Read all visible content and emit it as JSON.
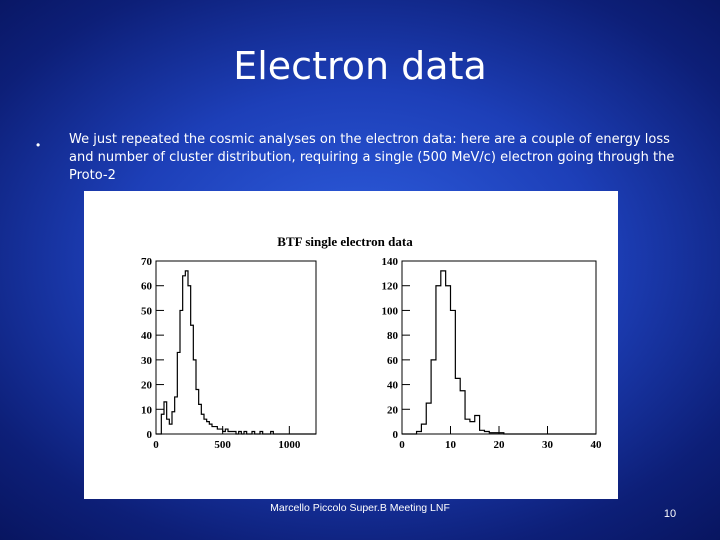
{
  "slide": {
    "title": "Electron data",
    "bullet": "We just repeated the cosmic analyses on the electron data: here are a couple of energy loss and number of cluster distribution, requiring a single (500 MeV/c) electron going through the Proto-2",
    "footer": "Marcello Piccolo Super.B Meeting LNF",
    "page_number": "10"
  },
  "figure_title": "BTF single electron data",
  "chart_data": [
    {
      "type": "bar",
      "histogram": true,
      "title": "",
      "xlabel": "",
      "ylabel": "",
      "xlim": [
        0,
        1200
      ],
      "ylim": [
        0,
        70
      ],
      "x_ticks": [
        0,
        500,
        1000
      ],
      "y_ticks": [
        0,
        10,
        20,
        30,
        40,
        50,
        60,
        70
      ],
      "bin_width": 20,
      "bin_start": 0,
      "values": [
        0,
        0,
        8,
        13,
        6,
        4,
        9,
        15,
        33,
        50,
        64,
        66,
        60,
        44,
        30,
        18,
        12,
        8,
        6,
        5,
        4,
        3,
        3,
        2,
        2,
        1,
        2,
        1,
        1,
        1,
        0,
        1,
        0,
        1,
        0,
        0,
        1,
        0,
        0,
        1,
        0,
        0,
        0,
        1,
        0,
        0,
        0,
        0,
        0,
        0,
        0,
        0,
        0,
        0,
        0,
        0,
        0,
        0,
        0,
        0
      ]
    },
    {
      "type": "bar",
      "histogram": true,
      "title": "",
      "xlabel": "",
      "ylabel": "",
      "xlim": [
        0,
        40
      ],
      "ylim": [
        0,
        140
      ],
      "x_ticks": [
        0,
        10,
        20,
        30,
        40
      ],
      "y_ticks": [
        0,
        20,
        40,
        60,
        80,
        100,
        120,
        140
      ],
      "bin_width": 1,
      "bin_start": 0,
      "values": [
        0,
        0,
        0,
        2,
        8,
        25,
        60,
        120,
        132,
        120,
        100,
        45,
        35,
        12,
        10,
        15,
        3,
        2,
        1,
        1,
        1,
        0,
        0,
        0,
        0,
        0,
        0,
        0,
        0,
        0,
        0,
        0,
        0,
        0,
        0,
        0,
        0,
        0,
        0,
        0
      ]
    }
  ]
}
